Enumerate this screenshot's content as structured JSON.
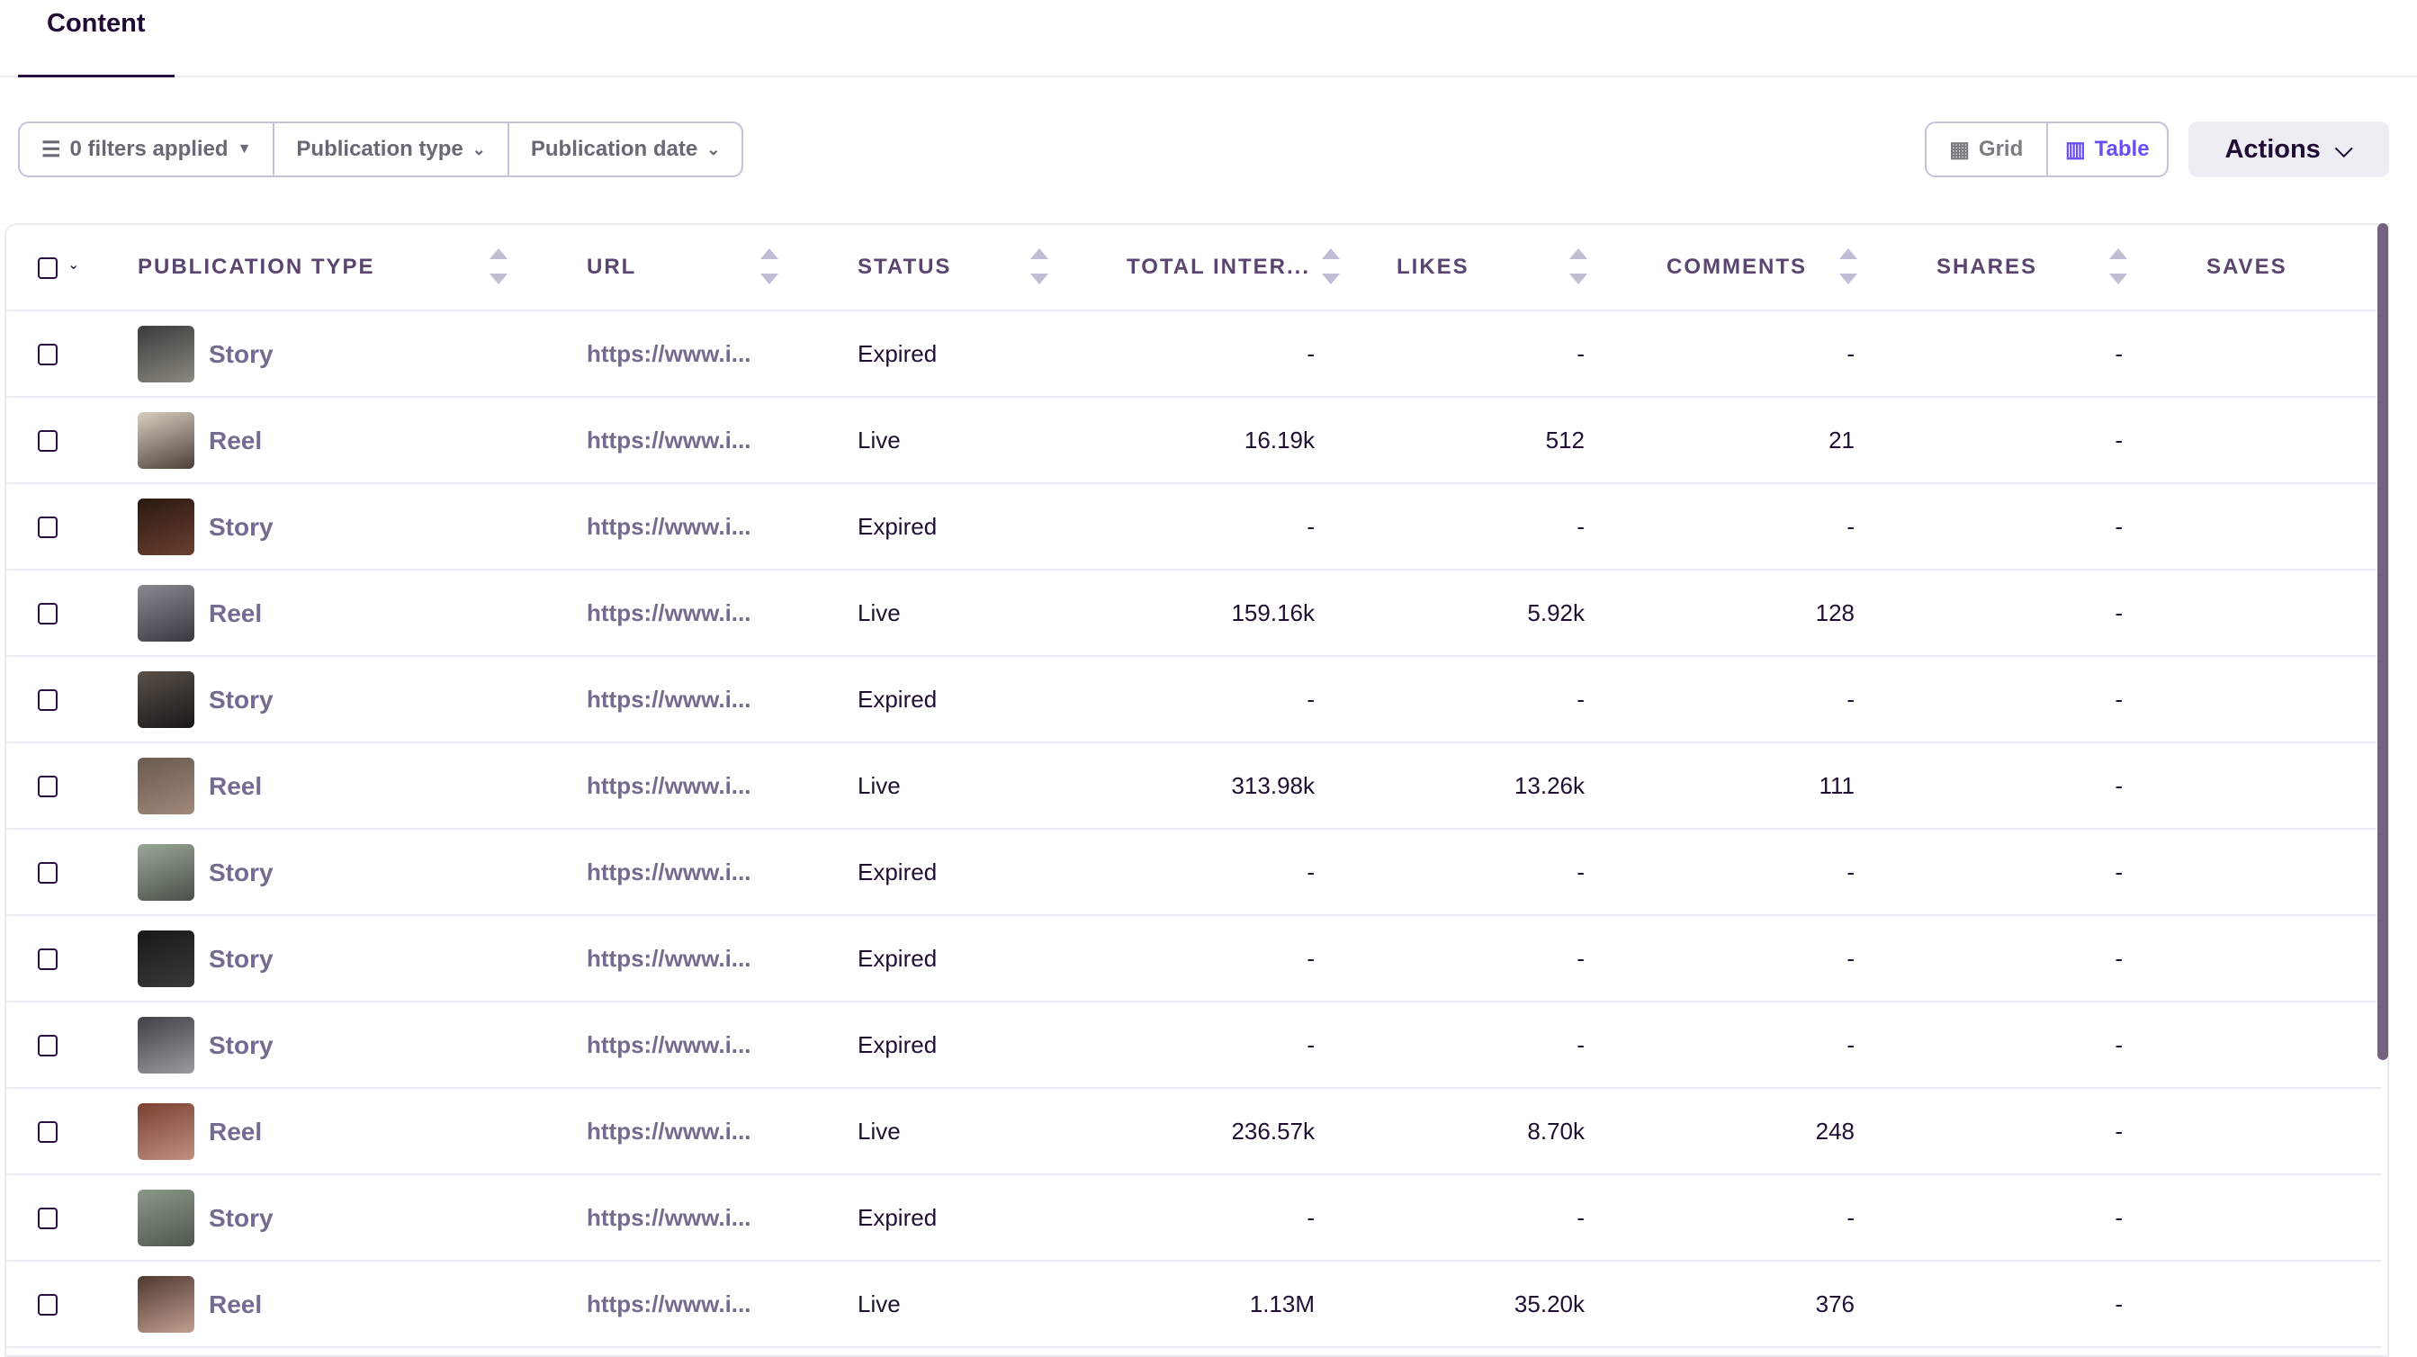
{
  "tabs": [
    {
      "label": "Content",
      "active": true
    }
  ],
  "filters": {
    "applied": "0 filters applied",
    "publication_type": "Publication type",
    "publication_date": "Publication date"
  },
  "view": {
    "grid": "Grid",
    "table": "Table",
    "active": "Table"
  },
  "actions": {
    "label": "Actions"
  },
  "colors": {
    "accent": "#6a4df5",
    "text": "#1f0f33",
    "muted": "#756a8f",
    "header": "#5b4570"
  },
  "columns": [
    "PUBLICATION TYPE",
    "URL",
    "STATUS",
    "TOTAL INTER...",
    "LIKES",
    "COMMENTS",
    "SHARES",
    "SAVES"
  ],
  "rows": [
    {
      "type": "Story",
      "url": "https://www.i...",
      "status": "Expired",
      "total": "-",
      "likes": "-",
      "comments": "-",
      "shares": "-"
    },
    {
      "type": "Reel",
      "url": "https://www.i...",
      "status": "Live",
      "total": "16.19k",
      "likes": "512",
      "comments": "21",
      "shares": "-"
    },
    {
      "type": "Story",
      "url": "https://www.i...",
      "status": "Expired",
      "total": "-",
      "likes": "-",
      "comments": "-",
      "shares": "-"
    },
    {
      "type": "Reel",
      "url": "https://www.i...",
      "status": "Live",
      "total": "159.16k",
      "likes": "5.92k",
      "comments": "128",
      "shares": "-"
    },
    {
      "type": "Story",
      "url": "https://www.i...",
      "status": "Expired",
      "total": "-",
      "likes": "-",
      "comments": "-",
      "shares": "-"
    },
    {
      "type": "Reel",
      "url": "https://www.i...",
      "status": "Live",
      "total": "313.98k",
      "likes": "13.26k",
      "comments": "111",
      "shares": "-"
    },
    {
      "type": "Story",
      "url": "https://www.i...",
      "status": "Expired",
      "total": "-",
      "likes": "-",
      "comments": "-",
      "shares": "-"
    },
    {
      "type": "Story",
      "url": "https://www.i...",
      "status": "Expired",
      "total": "-",
      "likes": "-",
      "comments": "-",
      "shares": "-"
    },
    {
      "type": "Story",
      "url": "https://www.i...",
      "status": "Expired",
      "total": "-",
      "likes": "-",
      "comments": "-",
      "shares": "-"
    },
    {
      "type": "Reel",
      "url": "https://www.i...",
      "status": "Live",
      "total": "236.57k",
      "likes": "8.70k",
      "comments": "248",
      "shares": "-"
    },
    {
      "type": "Story",
      "url": "https://www.i...",
      "status": "Expired",
      "total": "-",
      "likes": "-",
      "comments": "-",
      "shares": "-"
    },
    {
      "type": "Reel",
      "url": "https://www.i...",
      "status": "Live",
      "total": "1.13M",
      "likes": "35.20k",
      "comments": "376",
      "shares": "-"
    }
  ]
}
